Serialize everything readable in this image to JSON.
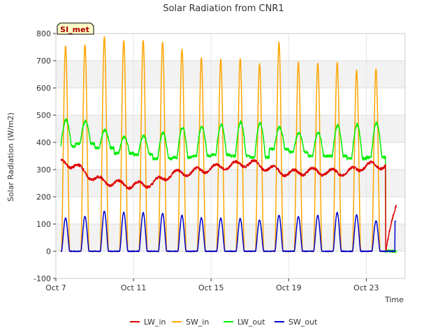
{
  "chart_data": {
    "type": "line",
    "title": "Solar Radiation from CNR1",
    "xlabel": "Time",
    "ylabel": "Solar Radiation (W/m2)",
    "badge": "SI_met",
    "ylim": [
      -100,
      800
    ],
    "yticks": [
      -100,
      0,
      100,
      200,
      300,
      400,
      500,
      600,
      700,
      800
    ],
    "xlim": [
      7,
      25
    ],
    "xticks": [
      {
        "day": 7,
        "label": "Oct 7"
      },
      {
        "day": 11,
        "label": "Oct 11"
      },
      {
        "day": 15,
        "label": "Oct 15"
      },
      {
        "day": 19,
        "label": "Oct 19"
      },
      {
        "day": 23,
        "label": "Oct 23"
      }
    ],
    "grid": true,
    "legend_position": "bottom",
    "series": [
      {
        "name": "LW_in",
        "color": "#dd0000"
      },
      {
        "name": "SW_in",
        "color": "#ffa500"
      },
      {
        "name": "LW_out",
        "color": "#00ee00"
      },
      {
        "name": "SW_out",
        "color": "#0000cc"
      }
    ],
    "days": [
      7,
      8,
      9,
      10,
      11,
      12,
      13,
      14,
      15,
      16,
      17,
      18,
      19,
      20,
      21,
      22,
      23,
      24
    ],
    "daily_peaks": {
      "SW_in": [
        755,
        760,
        788,
        775,
        775,
        770,
        742,
        710,
        705,
        708,
        690,
        768,
        695,
        692,
        693,
        665,
        668,
        0
      ],
      "SW_out": [
        122,
        128,
        148,
        143,
        142,
        140,
        132,
        123,
        122,
        120,
        115,
        133,
        128,
        132,
        142,
        133,
        112,
        0
      ],
      "LW_out_max": [
        483,
        478,
        445,
        420,
        425,
        435,
        455,
        458,
        465,
        475,
        472,
        455,
        435,
        437,
        462,
        465,
        472,
        0
      ],
      "LW_out_min": [
        385,
        395,
        380,
        360,
        355,
        340,
        345,
        350,
        355,
        350,
        345,
        375,
        365,
        350,
        350,
        340,
        345,
        0
      ],
      "LW_in_level": [
        330,
        315,
        265,
        250,
        242,
        250,
        285,
        290,
        305,
        315,
        325,
        305,
        285,
        295,
        290,
        290,
        315,
        0
      ]
    }
  }
}
